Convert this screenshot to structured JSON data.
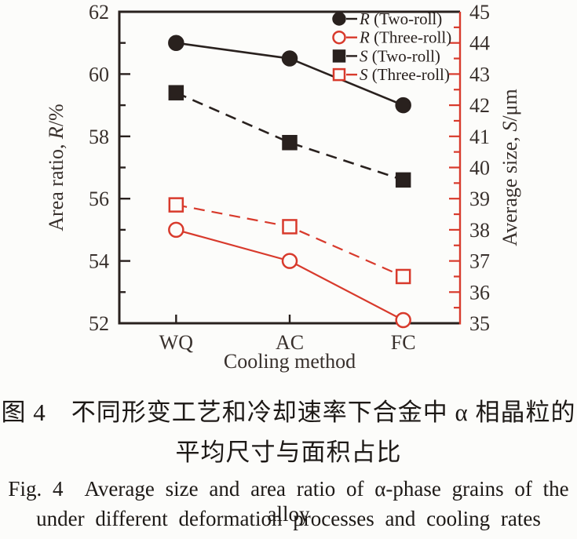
{
  "colors": {
    "red": "#d83a2c",
    "ink": "#29211e",
    "tick_text": "#38302c",
    "background": "#fcfcfa"
  },
  "chart_data": {
    "type": "line",
    "title": "",
    "categories": [
      "WQ",
      "AC",
      "FC"
    ],
    "xlabel": "Cooling method",
    "axes": {
      "left": {
        "label_prefix": "Area ratio, ",
        "label_var": "R",
        "label_suffix": "/%",
        "min": 52,
        "max": 62,
        "major_step": 2,
        "minor_step": 1
      },
      "right": {
        "label_prefix": "Average size, ",
        "label_var": "S",
        "label_suffix": "/μm",
        "min": 35,
        "max": 45,
        "major_step": 1,
        "minor_step": 0.5
      }
    },
    "series": [
      {
        "name": "R (Two-roll)",
        "var": "R",
        "label_rest": " (Two-roll)",
        "axis": "left",
        "values": [
          61.0,
          60.5,
          59.0
        ],
        "color": "ink",
        "marker": "circle",
        "fill": "filled",
        "dash": "solid"
      },
      {
        "name": "R (Three-roll)",
        "var": "R",
        "label_rest": " (Three-roll)",
        "axis": "left",
        "values": [
          55.0,
          54.0,
          52.1
        ],
        "color": "red",
        "marker": "circle",
        "fill": "open",
        "dash": "solid"
      },
      {
        "name": "S (Two-roll)",
        "var": "S",
        "label_rest": " (Two-roll)",
        "axis": "right",
        "values": [
          42.4,
          40.8,
          39.6
        ],
        "color": "ink",
        "marker": "square",
        "fill": "filled",
        "dash": "dashed"
      },
      {
        "name": "S (Three-roll)",
        "var": "S",
        "label_rest": " (Three-roll)",
        "axis": "right",
        "values": [
          38.8,
          38.1,
          36.5
        ],
        "color": "red",
        "marker": "square",
        "fill": "open",
        "dash": "dashed"
      }
    ],
    "legend": {
      "position": "top-right"
    }
  },
  "caption": {
    "zh_line1": "图 4　不同形变工艺和冷却速率下合金中 α 相晶粒的",
    "zh_line2": "平均尺寸与面积占比",
    "en_line1": "Fig. 4　Average size and area ratio of α-phase grains of the alloy",
    "en_line2": "under different deformation processes and cooling rates"
  }
}
